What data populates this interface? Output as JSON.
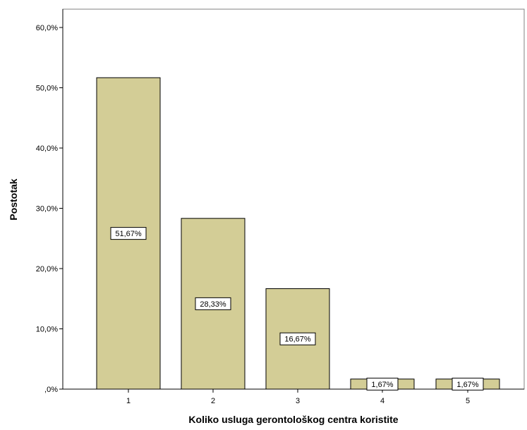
{
  "chart_data": {
    "type": "bar",
    "categories": [
      "1",
      "2",
      "3",
      "4",
      "5"
    ],
    "values": [
      51.67,
      28.33,
      16.67,
      1.67,
      1.67
    ],
    "data_labels": [
      "51,67%",
      "28,33%",
      "16,67%",
      "1,67%",
      "1,67%"
    ],
    "xlabel": "Koliko usluga gerontološkog centra koristite",
    "ylabel": "Postotak",
    "ylim": [
      0,
      63
    ],
    "yticks": [
      0,
      10,
      20,
      30,
      40,
      50,
      60
    ],
    "ytick_labels": [
      ",0%",
      "10,0%",
      "20,0%",
      "30,0%",
      "40,0%",
      "50,0%",
      "60,0%"
    ],
    "grid": false,
    "legend": "none",
    "colors": {
      "bar_fill": "#d3cd96",
      "bar_stroke": "#000000",
      "axis": "#000000",
      "frame": "#808080",
      "label_box": "#ffffff"
    }
  }
}
